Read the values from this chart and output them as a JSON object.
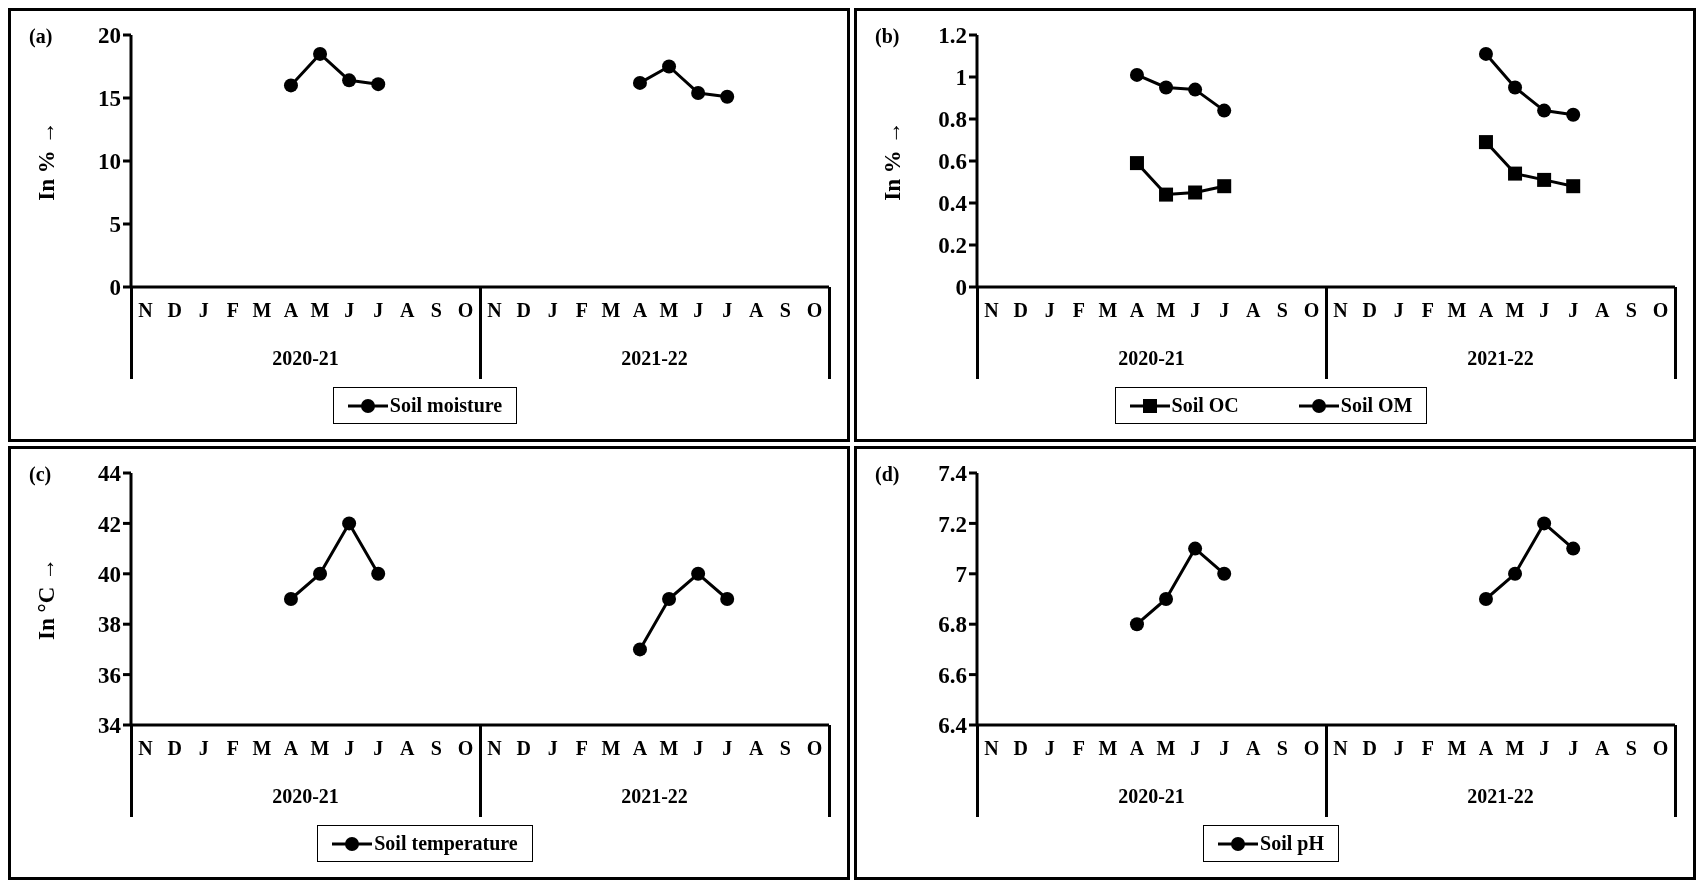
{
  "chart_data": [
    {
      "type": "line",
      "ylabel": "In % →",
      "categories": [
        "N",
        "D",
        "J",
        "F",
        "M",
        "A",
        "M",
        "J",
        "J",
        "A",
        "S",
        "O",
        "N",
        "D",
        "J",
        "F",
        "M",
        "A",
        "M",
        "J",
        "J",
        "A",
        "S",
        "O"
      ],
      "series": [
        {
          "name": "Soil moisture",
          "color": "#000000",
          "values": [
            null,
            null,
            null,
            null,
            null,
            16.0,
            18.5,
            16.4,
            16.1,
            null,
            null,
            null,
            null,
            null,
            null,
            null,
            null,
            16.2,
            17.5,
            15.4,
            15.1,
            null,
            null,
            null
          ]
        }
      ],
      "ylim": [
        0,
        20
      ],
      "yticks": [
        0,
        5,
        10,
        15,
        20
      ],
      "marker": "circle",
      "line_style": "solid",
      "legend": "bottom",
      "annotations": [
        "(a)",
        "2020-21",
        "2021-22"
      ]
    },
    {
      "type": "line",
      "ylabel": "In % →",
      "categories": [
        "N",
        "D",
        "J",
        "F",
        "M",
        "A",
        "M",
        "J",
        "J",
        "A",
        "S",
        "O",
        "N",
        "D",
        "J",
        "F",
        "M",
        "A",
        "M",
        "J",
        "J",
        "A",
        "S",
        "O"
      ],
      "series": [
        {
          "name": "Soil OC",
          "color": "#000000",
          "marker": "square",
          "values": [
            null,
            null,
            null,
            null,
            null,
            0.59,
            0.44,
            0.45,
            0.48,
            null,
            null,
            null,
            null,
            null,
            null,
            null,
            null,
            0.69,
            0.54,
            0.51,
            0.48,
            null,
            null,
            null
          ]
        },
        {
          "name": "Soil OM",
          "color": "#000000",
          "marker": "circle",
          "values": [
            null,
            null,
            null,
            null,
            null,
            1.01,
            0.95,
            0.94,
            0.84,
            null,
            null,
            null,
            null,
            null,
            null,
            null,
            null,
            1.11,
            0.95,
            0.84,
            0.82,
            null,
            null,
            null
          ]
        }
      ],
      "ylim": [
        0,
        1.2
      ],
      "yticks": [
        0,
        0.2,
        0.4,
        0.6,
        0.8,
        1,
        1.2
      ],
      "line_style": "solid",
      "legend": "bottom",
      "annotations": [
        "(b)",
        "2020-21",
        "2021-22"
      ]
    },
    {
      "type": "line",
      "ylabel": "In °C →",
      "categories": [
        "N",
        "D",
        "J",
        "F",
        "M",
        "A",
        "M",
        "J",
        "J",
        "A",
        "S",
        "O",
        "N",
        "D",
        "J",
        "F",
        "M",
        "A",
        "M",
        "J",
        "J",
        "A",
        "S",
        "O"
      ],
      "series": [
        {
          "name": "Soil temperature",
          "color": "#000000",
          "values": [
            null,
            null,
            null,
            null,
            null,
            39,
            40,
            42,
            40,
            null,
            null,
            null,
            null,
            null,
            null,
            null,
            null,
            37,
            39,
            40,
            39,
            null,
            null,
            null
          ]
        }
      ],
      "ylim": [
        34,
        44
      ],
      "yticks": [
        34,
        36,
        38,
        40,
        42,
        44
      ],
      "marker": "circle",
      "line_style": "solid",
      "legend": "bottom",
      "annotations": [
        "(c)",
        "2020-21",
        "2021-22"
      ]
    },
    {
      "type": "line",
      "categories": [
        "N",
        "D",
        "J",
        "F",
        "M",
        "A",
        "M",
        "J",
        "J",
        "A",
        "S",
        "O",
        "N",
        "D",
        "J",
        "F",
        "M",
        "A",
        "M",
        "J",
        "J",
        "A",
        "S",
        "O"
      ],
      "series": [
        {
          "name": "Soil pH",
          "color": "#000000",
          "values": [
            null,
            null,
            null,
            null,
            null,
            6.8,
            6.9,
            7.1,
            7.0,
            null,
            null,
            null,
            null,
            null,
            null,
            null,
            null,
            6.9,
            7.0,
            7.2,
            7.1,
            null,
            null,
            null
          ]
        }
      ],
      "ylim": [
        6.4,
        7.4
      ],
      "yticks": [
        6.4,
        6.6,
        6.8,
        7,
        7.2,
        7.4
      ],
      "marker": "circle",
      "line_style": "solid",
      "legend": "bottom",
      "annotations": [
        "(d)",
        "2020-21",
        "2021-22"
      ]
    }
  ]
}
